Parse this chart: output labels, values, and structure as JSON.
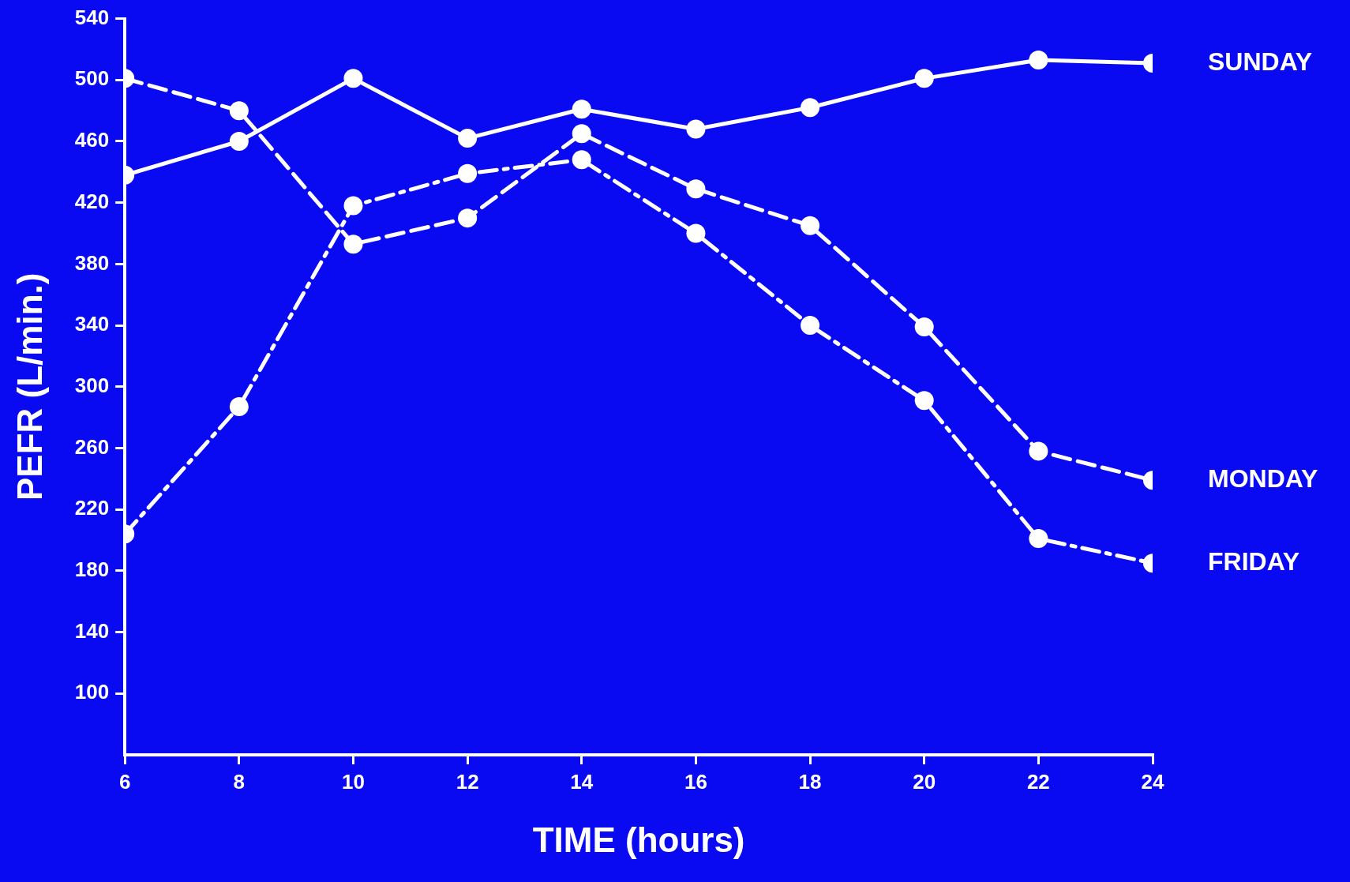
{
  "chart_data": {
    "type": "line",
    "xlabel": "TIME (hours)",
    "ylabel": "PEFR (L/min.)",
    "x": [
      6,
      8,
      10,
      12,
      14,
      16,
      18,
      20,
      22,
      24
    ],
    "xlim": [
      6,
      24
    ],
    "xticks": [
      6,
      8,
      10,
      12,
      14,
      16,
      18,
      20,
      22,
      24
    ],
    "ylim": [
      60,
      540
    ],
    "yticks": [
      100,
      140,
      180,
      220,
      260,
      300,
      340,
      380,
      420,
      460,
      500,
      540
    ],
    "grid": false,
    "legend": false,
    "marker": "circle",
    "series": [
      {
        "name": "SUNDAY",
        "color": "#ffffff",
        "line_style": "solid",
        "values": [
          438,
          460,
          501,
          462,
          481,
          468,
          482,
          501,
          513,
          511
        ]
      },
      {
        "name": "MONDAY",
        "color": "#ffffff",
        "line_style": "dashed",
        "values": [
          501,
          480,
          393,
          410,
          465,
          429,
          405,
          339,
          258,
          239
        ]
      },
      {
        "name": "FRIDAY",
        "color": "#ffffff",
        "line_style": "dashdot",
        "values": [
          204,
          287,
          418,
          439,
          448,
          400,
          340,
          291,
          201,
          185
        ]
      }
    ]
  }
}
